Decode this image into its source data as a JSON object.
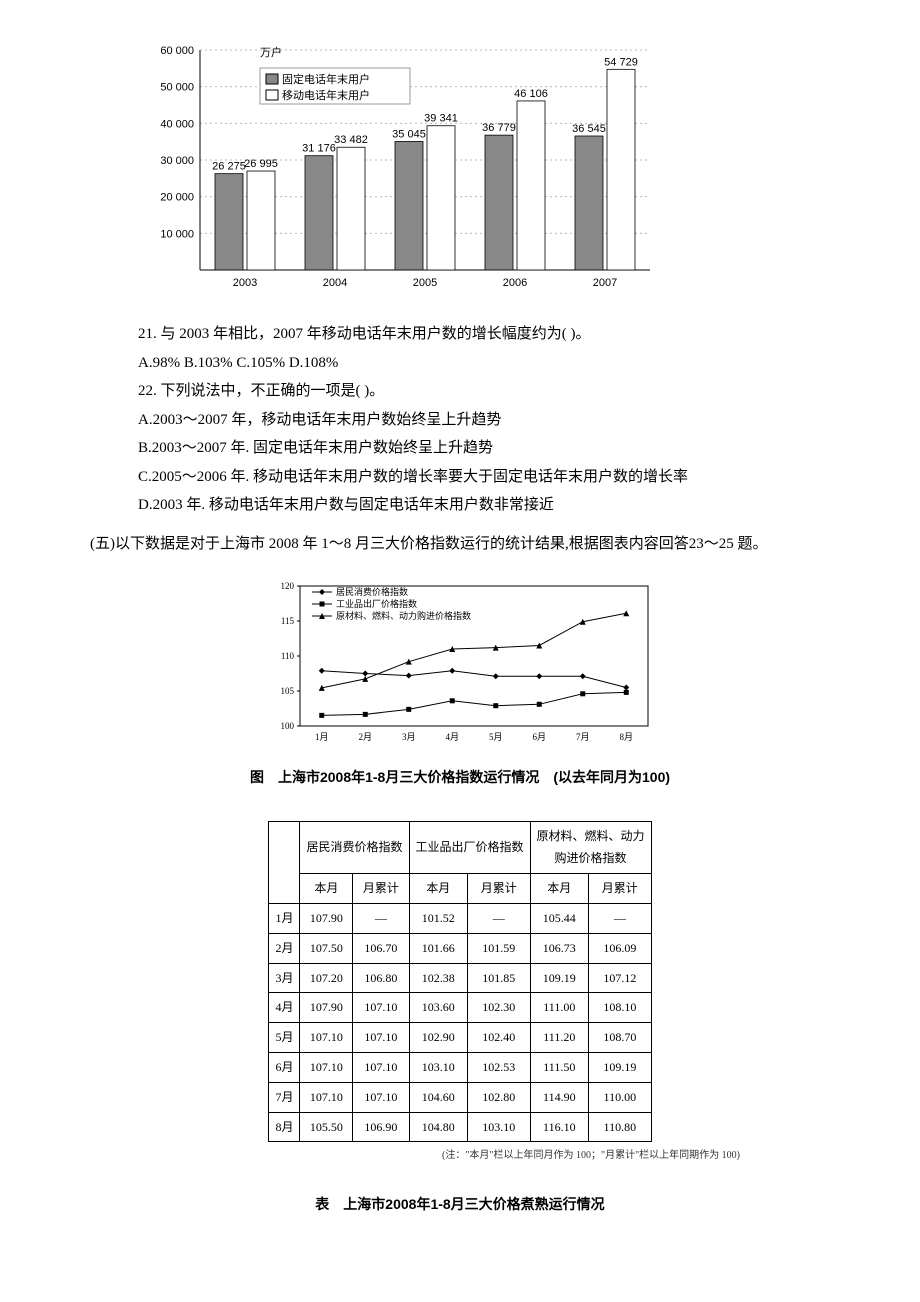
{
  "bar_chart": {
    "y_unit": "万户",
    "y_max": 60000,
    "y_ticks": [
      10000,
      20000,
      30000,
      40000,
      50000,
      60000
    ],
    "y_tick_labels": [
      "10 000",
      "20 000",
      "30 000",
      "40 000",
      "50 000",
      "60 000"
    ],
    "categories": [
      "2003",
      "2004",
      "2005",
      "2006",
      "2007"
    ],
    "series": [
      {
        "name": "固定电话年末用户",
        "legend": "固定电话年末用户",
        "color": "#888888",
        "values": [
          26275,
          31176,
          35045,
          36779,
          36545
        ]
      },
      {
        "name": "移动电话年末用户",
        "legend": "移动电话年末用户",
        "color": "#ffffff",
        "values": [
          26995,
          33482,
          39341,
          46106,
          54729
        ]
      }
    ],
    "bar_labels": [
      [
        "26 275",
        "26 995"
      ],
      [
        "31 176",
        "33 482"
      ],
      [
        "35 045",
        "39 341"
      ],
      [
        "36 779",
        "46 106"
      ],
      [
        "36 545",
        "54 729"
      ]
    ]
  },
  "q21": {
    "stem": "21. 与 2003 年相比，2007 年移动电话年末用户数的增长幅度约为( )。",
    "opts": "A.98%  B.103%  C.105%  D.108%"
  },
  "q22": {
    "stem": "22. 下列说法中，不正确的一项是( )。",
    "A": "A.2003～2007 年，移动电话年末用户数始终呈上升趋势",
    "B": "B.2003～2007 年. 固定电话年末用户数始终呈上升趋势",
    "C": "C.2005～2006 年. 移动电话年末用户数的增长率要大于固定电话年末用户数的增长率",
    "D": "D.2003 年. 移动电话年末用户数与固定电话年末用户数非常接近"
  },
  "section5_intro": "(五)以下数据是对于上海市 2008 年 1～8 月三大价格指数运行的统计结果,根据图表内容回答23～25 题。",
  "line_chart": {
    "y_min": 100,
    "y_max": 120,
    "y_ticks": [
      100,
      105,
      110,
      115,
      120
    ],
    "x_labels": [
      "1月",
      "2月",
      "3月",
      "4月",
      "5月",
      "6月",
      "7月",
      "8月"
    ],
    "series": [
      {
        "name": "居民消费价格指数",
        "marker": "diamond",
        "values": [
          107.9,
          107.5,
          107.2,
          107.9,
          107.1,
          107.1,
          107.1,
          105.5
        ]
      },
      {
        "name": "工业品出厂价格指数",
        "marker": "square",
        "values": [
          101.52,
          101.66,
          102.38,
          103.6,
          102.9,
          103.1,
          104.6,
          104.8
        ]
      },
      {
        "name": "原材料、燃料、动力购进价格指数",
        "marker": "triangle",
        "values": [
          105.44,
          106.73,
          109.19,
          111.0,
          111.2,
          111.5,
          114.9,
          116.1
        ]
      }
    ]
  },
  "fig_caption": "图　上海市2008年1-8月三大价格指数运行情况　(以去年同月为100)",
  "table": {
    "col_groups": [
      "居民消费价格指数",
      "工业品出厂价格指数",
      "原材料、燃料、动力\n购进价格指数"
    ],
    "sub_cols": [
      "本月",
      "月累计"
    ],
    "rows": [
      {
        "m": "1月",
        "a": "107.90",
        "b": "—",
        "c": "101.52",
        "d": "—",
        "e": "105.44",
        "f": "—"
      },
      {
        "m": "2月",
        "a": "107.50",
        "b": "106.70",
        "c": "101.66",
        "d": "101.59",
        "e": "106.73",
        "f": "106.09"
      },
      {
        "m": "3月",
        "a": "107.20",
        "b": "106.80",
        "c": "102.38",
        "d": "101.85",
        "e": "109.19",
        "f": "107.12"
      },
      {
        "m": "4月",
        "a": "107.90",
        "b": "107.10",
        "c": "103.60",
        "d": "102.30",
        "e": "111.00",
        "f": "108.10"
      },
      {
        "m": "5月",
        "a": "107.10",
        "b": "107.10",
        "c": "102.90",
        "d": "102.40",
        "e": "111.20",
        "f": "108.70"
      },
      {
        "m": "6月",
        "a": "107.10",
        "b": "107.10",
        "c": "103.10",
        "d": "102.53",
        "e": "111.50",
        "f": "109.19"
      },
      {
        "m": "7月",
        "a": "107.10",
        "b": "107.10",
        "c": "104.60",
        "d": "102.80",
        "e": "114.90",
        "f": "110.00"
      },
      {
        "m": "8月",
        "a": "105.50",
        "b": "106.90",
        "c": "104.80",
        "d": "103.10",
        "e": "116.10",
        "f": "110.80"
      }
    ],
    "note": "(注：\"本月\"栏以上年同月作为 100；\"月累计\"栏以上年同期作为 100)"
  },
  "tbl_caption": "表　上海市2008年1-8月三大价格煮熟运行情况"
}
